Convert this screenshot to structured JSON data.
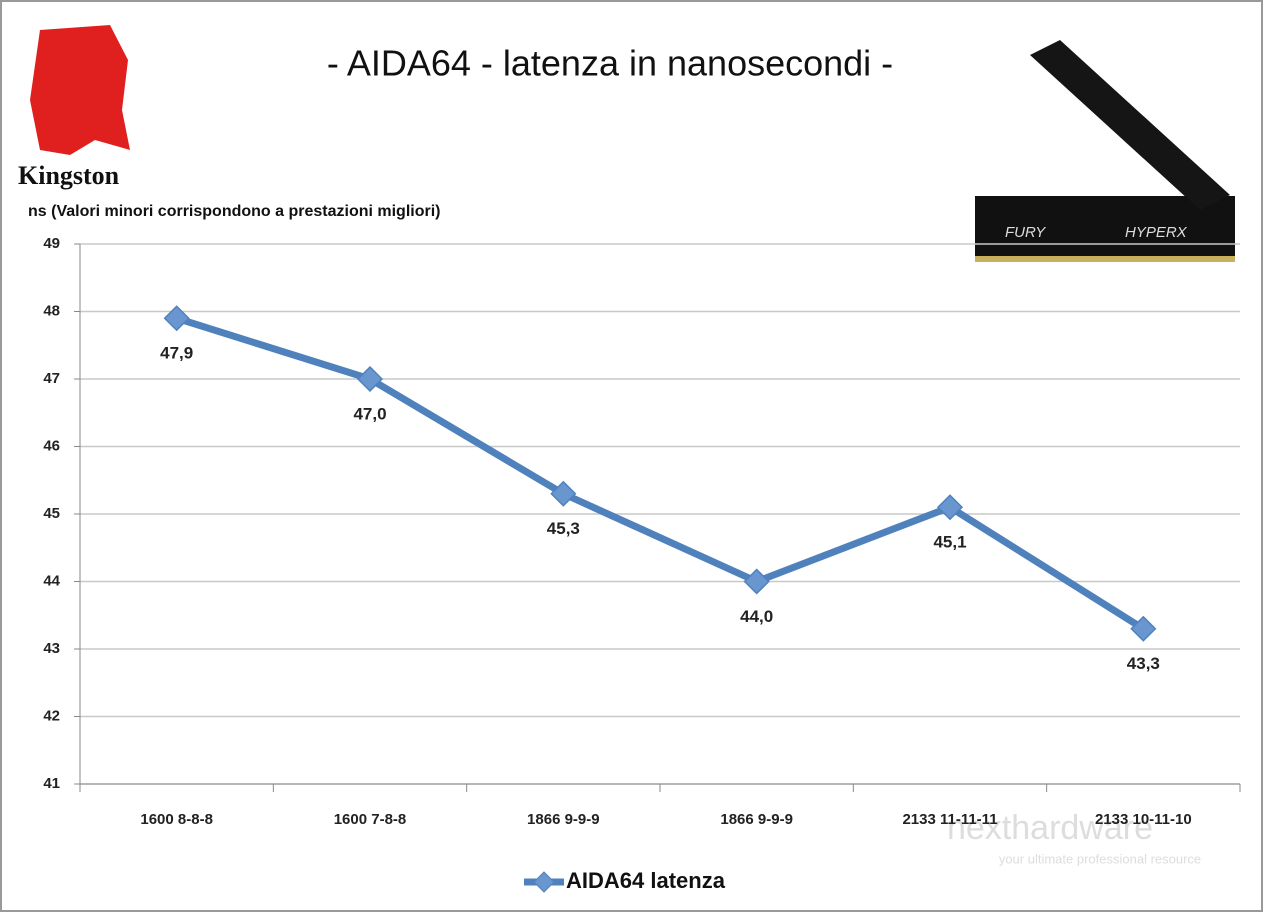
{
  "chart_data": {
    "type": "line",
    "title": "- AIDA64 - latenza in nanosecondi -",
    "subtitle": "ns  (Valori minori corrispondono a prestazioni  migliori)",
    "logo": "Kingston",
    "ram_labels": [
      "FURY",
      "HYPERX"
    ],
    "watermark": [
      "nexthardware",
      "your ultimate professional resource"
    ],
    "categories": [
      "1600 8-8-8",
      "1600 7-8-8",
      "1866 9-9-9",
      "1866 9-9-9",
      "2133 11-11-11",
      "2133 10-11-10"
    ],
    "series": [
      {
        "name": "AIDA64 latenza",
        "color": "#4f81bd",
        "values": [
          47.9,
          47.0,
          45.3,
          44.0,
          45.1,
          43.3
        ],
        "value_labels": [
          "47,9",
          "47,0",
          "45,3",
          "44,0",
          "45,1",
          "43,3"
        ]
      }
    ],
    "ylim": [
      41,
      49
    ],
    "yticks": [
      41,
      42,
      43,
      44,
      45,
      46,
      47,
      48,
      49
    ],
    "grid": true,
    "legend": "bottom"
  }
}
